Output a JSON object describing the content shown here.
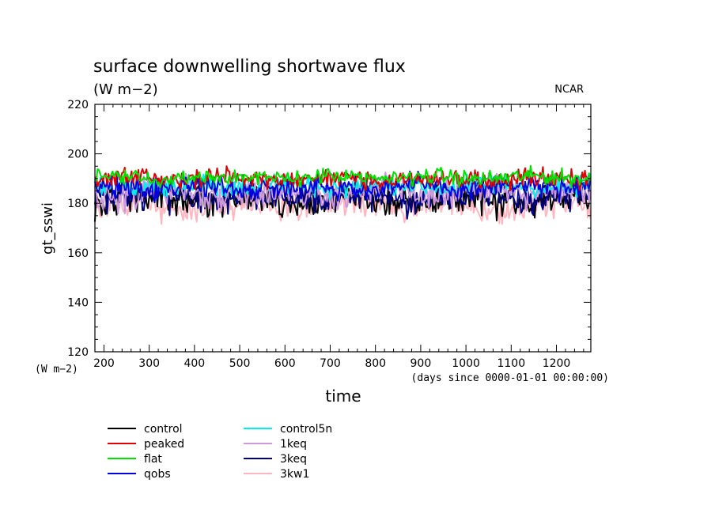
{
  "chart_data": {
    "type": "line",
    "title": "surface downwelling shortwave flux",
    "subtitle": "(W m−2)",
    "credit": "NCAR",
    "xlabel": "time",
    "x_units": "(days since 0000-01-01 00:00:00)",
    "ylabel": "gt_sswi",
    "y_units": "(W m−2)",
    "xlim": [
      180,
      1276
    ],
    "ylim": [
      120,
      220
    ],
    "x_ticks": [
      200,
      300,
      400,
      500,
      600,
      700,
      800,
      900,
      1000,
      1100,
      1200
    ],
    "y_ticks": [
      120,
      140,
      160,
      180,
      200,
      220
    ],
    "grid": false,
    "legend_position": "bottom-left",
    "x_step_days": 3,
    "series": [
      {
        "name": "control",
        "color": "#000000",
        "mean": 181.5,
        "amplitude": 3.0
      },
      {
        "name": "peaked",
        "color": "#e00000",
        "mean": 190.0,
        "amplitude": 1.8
      },
      {
        "name": "flat",
        "color": "#00e000",
        "mean": 190.5,
        "amplitude": 1.6
      },
      {
        "name": "qobs",
        "color": "#0000e0",
        "mean": 186.5,
        "amplitude": 2.2
      },
      {
        "name": "control5n",
        "color": "#00eeee",
        "mean": 187.0,
        "amplitude": 2.0
      },
      {
        "name": "1keq",
        "color": "#cc99dd",
        "mean": 184.5,
        "amplitude": 3.0
      },
      {
        "name": "3keq",
        "color": "#000080",
        "mean": 182.5,
        "amplitude": 3.0
      },
      {
        "name": "3kw1",
        "color": "#ffb6c1",
        "mean": 179.0,
        "amplitude": 2.8
      }
    ]
  }
}
